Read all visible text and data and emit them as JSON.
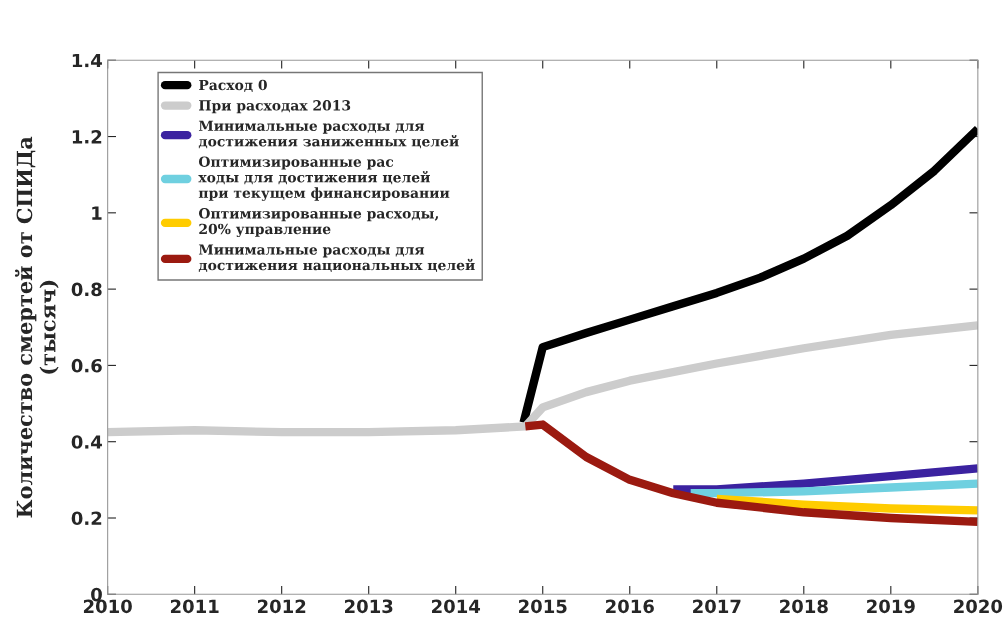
{
  "chart_data": {
    "type": "line",
    "ylabel": "Количество смертей от СПИДа\n(тысяч)",
    "xlim": [
      2010,
      2020
    ],
    "xticks": [
      2010,
      2011,
      2012,
      2013,
      2014,
      2015,
      2016,
      2017,
      2018,
      2019,
      2020
    ],
    "ylim": [
      0,
      1.4
    ],
    "yticks": [
      0,
      0.2,
      0.4,
      0.6,
      0.8,
      1,
      1.2,
      1.4
    ],
    "grid": false,
    "legend": "top left",
    "line_style": "solid",
    "marker": "none",
    "series": [
      {
        "name": "Расход 0",
        "color": "#000000",
        "x": [
          2014.78,
          2015.0,
          2015.5,
          2016,
          2016.5,
          2017,
          2017.5,
          2018,
          2018.5,
          2019,
          2019.5,
          2020
        ],
        "values": [
          0.45,
          0.648,
          0.685,
          0.72,
          0.755,
          0.79,
          0.83,
          0.88,
          0.94,
          1.02,
          1.11,
          1.22
        ]
      },
      {
        "name": "При расходах 2013",
        "color": "#cccccc",
        "x": [
          2010,
          2011,
          2012,
          2013,
          2014,
          2014.8,
          2015.0,
          2015.5,
          2016,
          2017,
          2018,
          2019,
          2020
        ],
        "values": [
          0.425,
          0.43,
          0.425,
          0.425,
          0.43,
          0.44,
          0.49,
          0.53,
          0.56,
          0.605,
          0.645,
          0.68,
          0.705
        ]
      },
      {
        "name": "Минимальные расходы для\nдостижения заниженных целей",
        "color": "#3b22a0",
        "x": [
          2016.5,
          2017,
          2018,
          2019,
          2020
        ],
        "values": [
          0.275,
          0.275,
          0.29,
          0.31,
          0.33
        ]
      },
      {
        "name": "Оптимизированные рас\nходы для достижения целей\nпри текущем финансировании",
        "color": "#6fd0e0",
        "x": [
          2016.7,
          2017,
          2018,
          2019,
          2020
        ],
        "values": [
          0.265,
          0.265,
          0.27,
          0.28,
          0.29
        ]
      },
      {
        "name": "Оптимизированные расходы,\n20% управление",
        "color": "#ffcc00",
        "x": [
          2017,
          2018,
          2019,
          2020
        ],
        "values": [
          0.25,
          0.235,
          0.225,
          0.22
        ]
      },
      {
        "name": "Минимальные расходы для\nдостижения национальных целей",
        "color": "#9b1a10",
        "x": [
          2014.8,
          2015.0,
          2015.5,
          2016,
          2016.5,
          2017,
          2018,
          2019,
          2020
        ],
        "values": [
          0.44,
          0.445,
          0.36,
          0.3,
          0.265,
          0.24,
          0.215,
          0.2,
          0.19
        ]
      }
    ]
  }
}
